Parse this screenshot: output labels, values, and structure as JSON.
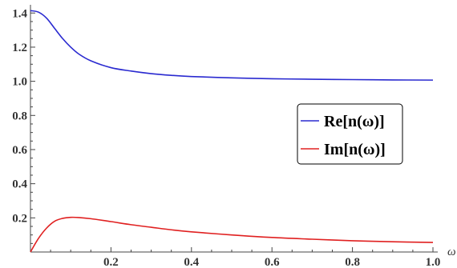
{
  "chart_data": {
    "type": "line",
    "xlabel": "ω",
    "ylabel": "",
    "xlim": [
      0,
      1.0
    ],
    "ylim": [
      0,
      1.42
    ],
    "x_ticks": [
      0.2,
      0.4,
      0.6,
      0.8,
      1.0
    ],
    "x_tick_labels": [
      "0.2",
      "0.4",
      "0.6",
      "0.8",
      "1.0"
    ],
    "y_ticks": [
      0.2,
      0.4,
      0.6,
      0.8,
      1.0,
      1.2,
      1.4
    ],
    "y_tick_labels": [
      "0.2",
      "0.4",
      "0.6",
      "0.8",
      "1.0",
      "1.2",
      "1.4"
    ],
    "grid": false,
    "legend_position": "right",
    "series": [
      {
        "name": "Re[n(ω)]",
        "color": "#2a2ad0",
        "x": [
          0,
          0.02,
          0.04,
          0.06,
          0.08,
          0.1,
          0.12,
          0.15,
          0.2,
          0.25,
          0.3,
          0.35,
          0.4,
          0.5,
          0.6,
          0.7,
          0.8,
          0.9,
          1.0
        ],
        "y": [
          1.414,
          1.405,
          1.37,
          1.31,
          1.25,
          1.2,
          1.16,
          1.12,
          1.08,
          1.06,
          1.045,
          1.035,
          1.028,
          1.02,
          1.015,
          1.012,
          1.01,
          1.008,
          1.007
        ]
      },
      {
        "name": "Im[n(ω)]",
        "color": "#e02020",
        "x": [
          0,
          0.02,
          0.04,
          0.06,
          0.08,
          0.1,
          0.12,
          0.15,
          0.2,
          0.25,
          0.3,
          0.35,
          0.4,
          0.5,
          0.6,
          0.7,
          0.8,
          0.9,
          1.0
        ],
        "y": [
          0.0,
          0.08,
          0.14,
          0.18,
          0.197,
          0.203,
          0.202,
          0.195,
          0.178,
          0.16,
          0.145,
          0.13,
          0.118,
          0.1,
          0.085,
          0.075,
          0.066,
          0.06,
          0.056
        ]
      }
    ]
  }
}
